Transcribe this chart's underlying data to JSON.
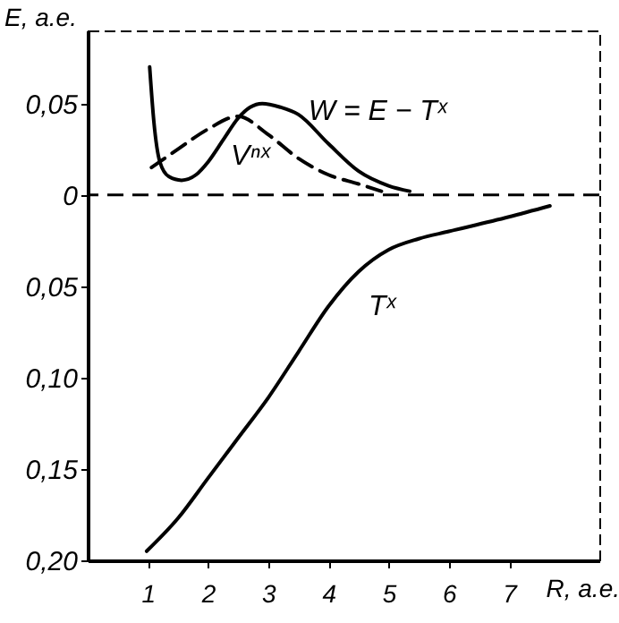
{
  "chart_data": {
    "type": "line",
    "xlabel": "R, a.e.",
    "ylabel": "E, a.e.",
    "xlim": [
      0,
      8.5
    ],
    "xticks": [
      1,
      2,
      3,
      4,
      5,
      6,
      7
    ],
    "ylim": [
      -0.2,
      0.09
    ],
    "yticks": [
      {
        "value": 0.05,
        "label": "0,05"
      },
      {
        "value": 0,
        "label": "0"
      },
      {
        "value": -0.05,
        "label": "0,05"
      },
      {
        "value": -0.1,
        "label": "0,10"
      },
      {
        "value": -0.15,
        "label": "0,15"
      },
      {
        "value": -0.2,
        "label": "0,20"
      }
    ],
    "grid": false,
    "marker": "none",
    "ref_lines": [
      {
        "axis": "y",
        "value": 0,
        "line_style": "dashed",
        "color": "#000000"
      }
    ],
    "series": [
      {
        "name": "W = E − Tˣ",
        "color": "#000000",
        "line_style": "solid",
        "x": [
          1.03,
          1.1,
          1.2,
          1.35,
          1.56,
          1.8,
          2,
          2.25,
          2.5,
          2.7,
          2.9,
          3.2,
          3.5,
          4,
          4.5,
          5,
          5.35
        ],
        "values": [
          0.07,
          0.04,
          0.018,
          0.01,
          0.008,
          0.011,
          0.018,
          0.03,
          0.042,
          0.048,
          0.05,
          0.048,
          0.044,
          0.028,
          0.013,
          0.005,
          0.002
        ]
      },
      {
        "name": "Vⁿˣ",
        "color": "#000000",
        "line_style": "dashed",
        "x": [
          1.06,
          1.5,
          2,
          2.5,
          3,
          3.5,
          4,
          4.5,
          4.88
        ],
        "values": [
          0.015,
          0.025,
          0.036,
          0.043,
          0.033,
          0.02,
          0.011,
          0.006,
          0.002
        ]
      },
      {
        "name": "Tˣ",
        "color": "#000000",
        "line_style": "solid",
        "x": [
          0.98,
          1.5,
          2,
          2.5,
          3,
          3.5,
          4,
          4.5,
          5,
          5.5,
          6,
          7,
          7.68
        ],
        "values": [
          -0.195,
          -0.177,
          -0.155,
          -0.133,
          -0.111,
          -0.086,
          -0.061,
          -0.042,
          -0.03,
          -0.024,
          -0.02,
          -0.012,
          -0.006
        ]
      }
    ]
  }
}
